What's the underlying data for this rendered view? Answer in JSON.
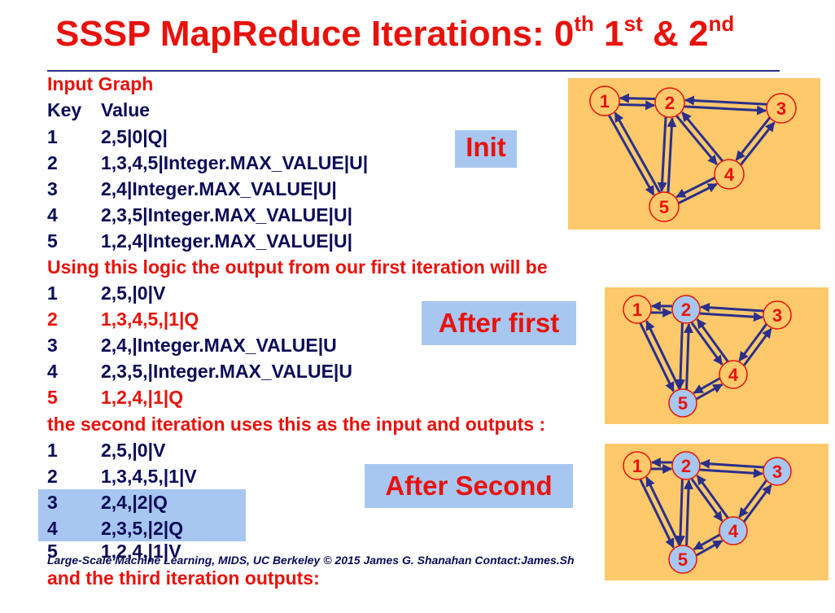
{
  "title": {
    "prefix": "SSSP MapReduce Iterations: 0",
    "sup1": "th",
    "mid1": " 1",
    "sup2": "st",
    "mid2": " & 2",
    "sup3": "nd"
  },
  "input": {
    "heading": "Input Graph",
    "header": {
      "key": "Key",
      "value": "Value"
    },
    "rows": [
      {
        "key": "1",
        "value": "2,5|0|Q|"
      },
      {
        "key": "2",
        "value": "1,3,4,5|Integer.MAX_VALUE|U|"
      },
      {
        "key": "3",
        "value": "2,4|Integer.MAX_VALUE|U|"
      },
      {
        "key": "4",
        "value": "2,3,5|Integer.MAX_VALUE|U|"
      },
      {
        "key": "5",
        "value": "1,2,4|Integer.MAX_VALUE|U|"
      }
    ]
  },
  "first": {
    "heading": "Using this logic the output from our first iteration will be",
    "rows": [
      {
        "key": "1",
        "value": "2,5,|0|V"
      },
      {
        "key": "2",
        "value": "1,3,4,5,|1|Q"
      },
      {
        "key": "3",
        "value": "2,4,|Integer.MAX_VALUE|U"
      },
      {
        "key": "4",
        "value": "2,3,5,|Integer.MAX_VALUE|U"
      },
      {
        "key": "5",
        "value": "1,2,4,|1|Q"
      }
    ]
  },
  "second": {
    "heading": "the second iteration uses this as the input and outputs :",
    "rows": [
      {
        "key": "1",
        "value": "2,5,|0|V"
      },
      {
        "key": "2",
        "value": "1,3,4,5,|1|V"
      },
      {
        "key": "3",
        "value": "2,4,|2|Q"
      },
      {
        "key": "4",
        "value": "2,3,5,|2|Q"
      },
      {
        "key": "5",
        "value": "1,2,4,|1|V"
      }
    ]
  },
  "third_heading": "and the third iteration outputs:",
  "labels": {
    "init": "Init",
    "after_first": "After first",
    "after_second": "After Second"
  },
  "node_labels": [
    "1",
    "2",
    "3",
    "4",
    "5"
  ],
  "footer": "Large-Scale Machine Learning, MIDS, UC Berkeley ©  2015 James G. Shanahan   Contact:James.Sh",
  "colors": {
    "title_red": "#e8120c",
    "text_navy": "#0b0b58",
    "label_bg": "#a7c7f0",
    "panel_bg": "#fdc96b",
    "node_visited_blue": "#a7c7f0",
    "arrow": "#2b2f8a"
  }
}
